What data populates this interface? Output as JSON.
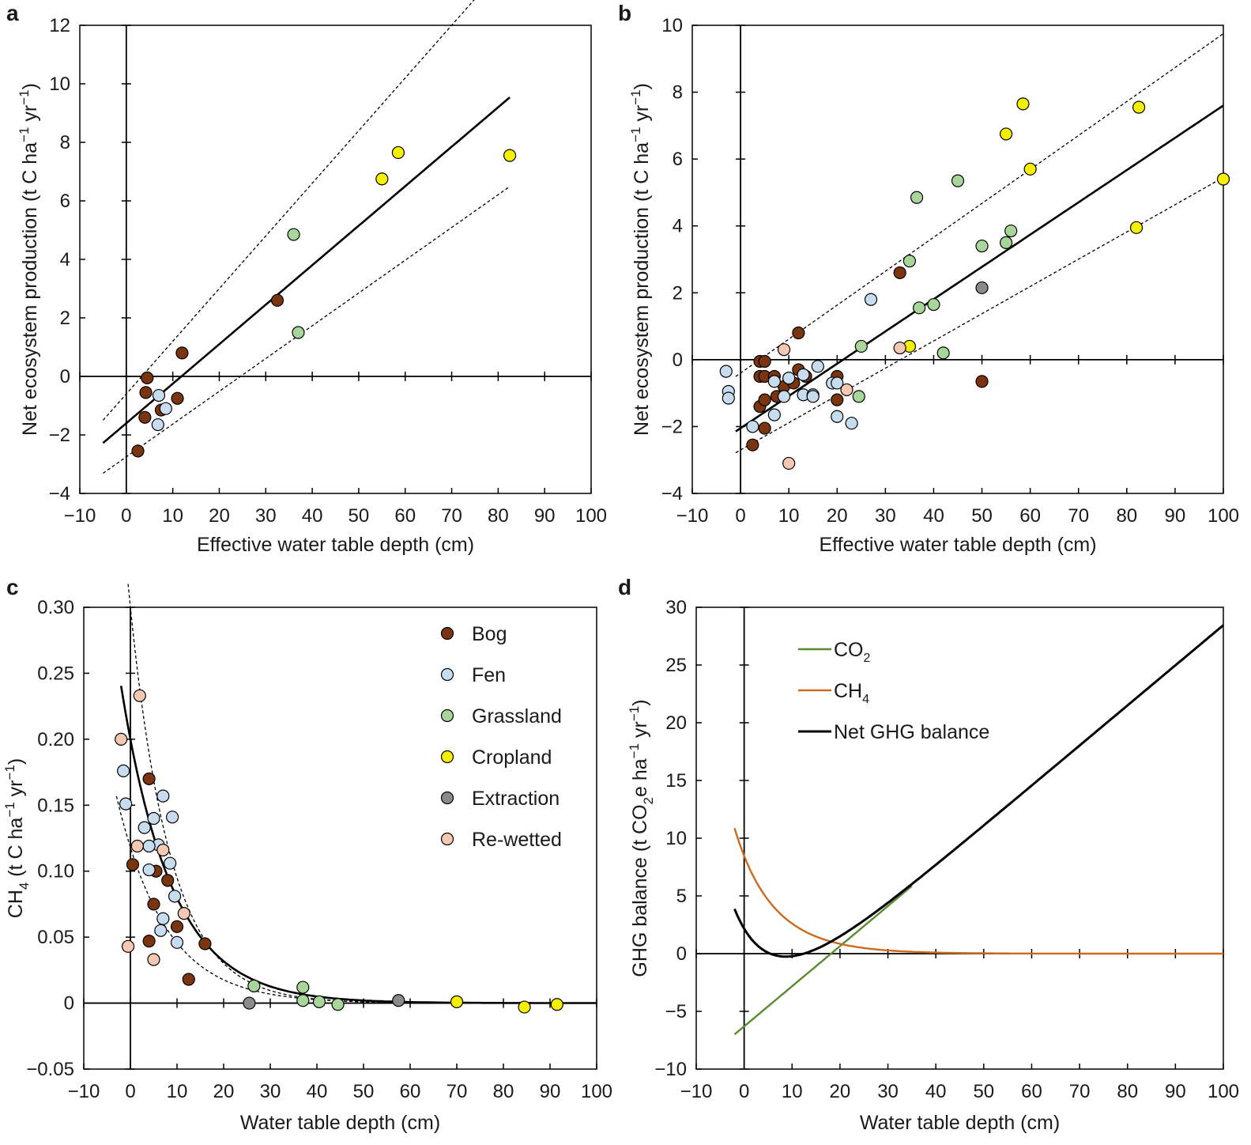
{
  "colors": {
    "bog": "#7a3410",
    "fen": "#c8dcf0",
    "grassland": "#a8d59a",
    "cropland": "#f5f000",
    "extraction": "#8a8a8a",
    "rewetted": "#f5c8b4",
    "co2": "#5a8a32",
    "ch4": "#cc6a1e",
    "net": "#000000"
  },
  "chart_data": [
    {
      "id": "a",
      "type": "scatter",
      "panel_label": "a",
      "xlabel": "Effective water table depth (cm)",
      "ylabel": "Net ecosystem production (t C ha",
      "ylabel_sup1": "−1",
      "ylabel_mid": " yr",
      "ylabel_sup2": "−1",
      "ylabel_end": ")",
      "xlim": [
        -10,
        100
      ],
      "ylim": [
        -4,
        12
      ],
      "xticks": [
        "−10",
        "0",
        "10",
        "20",
        "30",
        "40",
        "50",
        "60",
        "70",
        "80",
        "90",
        "100"
      ],
      "yticks": [
        "−4",
        "−2",
        "0",
        "2",
        "4",
        "6",
        "8",
        "10",
        "12"
      ],
      "series": [
        {
          "name": "Bog",
          "class": "bog",
          "points": [
            [
              4.5,
              -0.05
            ],
            [
              4.2,
              -0.55
            ],
            [
              4,
              -1.4
            ],
            [
              2.5,
              -2.55
            ],
            [
              7.5,
              -1.15
            ],
            [
              11,
              -0.75
            ],
            [
              12,
              0.8
            ],
            [
              32.5,
              2.6
            ]
          ]
        },
        {
          "name": "Fen",
          "class": "fen",
          "points": [
            [
              7,
              -0.65
            ],
            [
              8.5,
              -1.1
            ],
            [
              6.8,
              -1.65
            ]
          ]
        },
        {
          "name": "Grassland",
          "class": "grassland",
          "points": [
            [
              36,
              4.85
            ],
            [
              37,
              1.5
            ]
          ]
        },
        {
          "name": "Cropland",
          "class": "cropland",
          "points": [
            [
              55,
              6.75
            ],
            [
              58.5,
              7.65
            ],
            [
              82.5,
              7.55
            ]
          ]
        }
      ],
      "fit": {
        "x0": -5,
        "x1": 82.5,
        "slope": 0.135,
        "intercept": -1.6
      },
      "ci_upper": {
        "x0": -5,
        "x1": 80,
        "slope": 0.18,
        "intercept": -0.6
      },
      "ci_lower": {
        "x0": -5,
        "x1": 82.5,
        "slope": 0.112,
        "intercept": -2.75
      }
    },
    {
      "id": "b",
      "type": "scatter",
      "panel_label": "b",
      "xlabel": "Effective water table depth (cm)",
      "ylabel": "Net ecosystem production (t C ha",
      "ylabel_sup1": "−1",
      "ylabel_mid": " yr",
      "ylabel_sup2": "−1",
      "ylabel_end": ")",
      "xlim": [
        -10,
        100
      ],
      "ylim": [
        -4,
        10
      ],
      "xticks": [
        "−10",
        "0",
        "10",
        "20",
        "30",
        "40",
        "50",
        "60",
        "70",
        "80",
        "90",
        "100"
      ],
      "yticks": [
        "−4",
        "−2",
        "0",
        "2",
        "4",
        "6",
        "8",
        "10"
      ],
      "series": [
        {
          "name": "Bog",
          "class": "bog",
          "points": [
            [
              4,
              -0.05
            ],
            [
              5,
              -0.05
            ],
            [
              4,
              -0.5
            ],
            [
              5,
              -0.5
            ],
            [
              7,
              -0.5
            ],
            [
              7.5,
              -1.1
            ],
            [
              4,
              -1.4
            ],
            [
              5,
              -1.2
            ],
            [
              5,
              -2.05
            ],
            [
              2.5,
              -2.55
            ],
            [
              9,
              -0.8
            ],
            [
              11,
              -0.7
            ],
            [
              12,
              -0.3
            ],
            [
              13.5,
              -0.5
            ],
            [
              20,
              -0.5
            ],
            [
              20,
              -1.2
            ],
            [
              12,
              0.8
            ],
            [
              33,
              2.6
            ],
            [
              50,
              -0.65
            ]
          ]
        },
        {
          "name": "Fen",
          "class": "fen",
          "points": [
            [
              -3,
              -0.35
            ],
            [
              -2.5,
              -0.95
            ],
            [
              -2.5,
              -1.15
            ],
            [
              2.5,
              -2.0
            ],
            [
              7,
              -0.65
            ],
            [
              7,
              -1.65
            ],
            [
              9,
              -1.1
            ],
            [
              10,
              -0.55
            ],
            [
              13,
              -0.45
            ],
            [
              13,
              -1.05
            ],
            [
              15,
              -1.05
            ],
            [
              15,
              -1.1
            ],
            [
              16,
              -0.2
            ],
            [
              19,
              -0.7
            ],
            [
              20,
              -0.7
            ],
            [
              20,
              -1.7
            ],
            [
              23,
              -1.9
            ],
            [
              27,
              1.8
            ]
          ]
        },
        {
          "name": "Grassland",
          "class": "grassland",
          "points": [
            [
              24.5,
              -1.1
            ],
            [
              25,
              0.4
            ],
            [
              35,
              2.95
            ],
            [
              36.5,
              4.85
            ],
            [
              37,
              1.55
            ],
            [
              40,
              1.65
            ],
            [
              42,
              0.2
            ],
            [
              45,
              5.35
            ],
            [
              50,
              3.4
            ],
            [
              55,
              3.5
            ],
            [
              56,
              3.85
            ]
          ]
        },
        {
          "name": "Cropland",
          "class": "cropland",
          "points": [
            [
              35,
              0.4
            ],
            [
              55,
              6.75
            ],
            [
              58.5,
              7.65
            ],
            [
              60,
              5.7
            ],
            [
              82,
              3.95
            ],
            [
              82.5,
              7.55
            ],
            [
              100,
              5.4
            ]
          ]
        },
        {
          "name": "Extraction",
          "class": "extraction",
          "points": [
            [
              50,
              2.15
            ]
          ]
        },
        {
          "name": "Re-wetted",
          "class": "rewetted",
          "points": [
            [
              9,
              0.3
            ],
            [
              10,
              -3.1
            ],
            [
              22,
              -0.9
            ],
            [
              33,
              0.35
            ]
          ]
        }
      ],
      "fit": {
        "x0": -1,
        "x1": 100,
        "slope": 0.0965,
        "intercept": -2.05
      },
      "ci_upper": {
        "x0": -1,
        "x1": 100,
        "slope": 0.1015,
        "intercept": -0.4
      },
      "ci_lower": {
        "x0": -1,
        "x1": 100,
        "slope": 0.0815,
        "intercept": -2.7
      }
    },
    {
      "id": "c",
      "type": "scatter",
      "panel_label": "c",
      "xlabel": "Water table depth (cm)",
      "ylabel": "CH",
      "ylabel_sub": "4",
      "ylabel_rest": " (t C ha",
      "ylabel_sup1": "−1",
      "ylabel_mid": " yr",
      "ylabel_sup2": "−1",
      "ylabel_end": ")",
      "xlim": [
        -10,
        100
      ],
      "ylim": [
        -0.05,
        0.3
      ],
      "xticks": [
        "−10",
        "0",
        "10",
        "20",
        "30",
        "40",
        "50",
        "60",
        "70",
        "80",
        "90",
        "100"
      ],
      "yticks": [
        "−0.05",
        "0",
        "0.05",
        "0.10",
        "0.15",
        "0.20",
        "0.25",
        "0.30"
      ],
      "legend": [
        "Bog",
        "Fen",
        "Grassland",
        "Cropland",
        "Extraction",
        "Re-wetted"
      ],
      "series": [
        {
          "name": "Bog",
          "class": "bog",
          "points": [
            [
              4,
              0.17
            ],
            [
              0.5,
              0.105
            ],
            [
              5.5,
              0.1
            ],
            [
              8,
              0.093
            ],
            [
              5,
              0.075
            ],
            [
              10,
              0.058
            ],
            [
              4,
              0.047
            ],
            [
              16,
              0.045
            ],
            [
              12.5,
              0.018
            ]
          ]
        },
        {
          "name": "Fen",
          "class": "fen",
          "points": [
            [
              -1.5,
              0.176
            ],
            [
              -1,
              0.151
            ],
            [
              7,
              0.157
            ],
            [
              9,
              0.141
            ],
            [
              5,
              0.14
            ],
            [
              3,
              0.133
            ],
            [
              6,
              0.12
            ],
            [
              4,
              0.119
            ],
            [
              8.5,
              0.106
            ],
            [
              4,
              0.101
            ],
            [
              9.5,
              0.081
            ],
            [
              7,
              0.064
            ],
            [
              6.5,
              0.055
            ],
            [
              10,
              0.046
            ]
          ]
        },
        {
          "name": "Grassland",
          "class": "grassland",
          "points": [
            [
              26.5,
              0.013
            ],
            [
              37,
              0.012
            ],
            [
              37,
              0.002
            ],
            [
              40.5,
              0.001
            ],
            [
              44.5,
              -0.001
            ]
          ]
        },
        {
          "name": "Cropland",
          "class": "cropland",
          "points": [
            [
              70,
              0.001
            ],
            [
              84.5,
              -0.003
            ],
            [
              91.5,
              -0.001
            ]
          ]
        },
        {
          "name": "Extraction",
          "class": "extraction",
          "points": [
            [
              25.5,
              0
            ],
            [
              57.5,
              0.002
            ]
          ]
        },
        {
          "name": "Re-wetted",
          "class": "rewetted",
          "points": [
            [
              -2,
              0.2
            ],
            [
              2,
              0.233
            ],
            [
              1.5,
              0.119
            ],
            [
              7,
              0.116
            ],
            [
              11.5,
              0.068
            ],
            [
              -0.5,
              0.043
            ],
            [
              5,
              0.033
            ]
          ]
        }
      ],
      "fit": {
        "a": 0.2,
        "k": 0.092,
        "x0": -2,
        "x1": 100
      },
      "ci_upper": {
        "a": 0.3,
        "k": 0.115,
        "x0": -0.5,
        "x1": 100
      },
      "ci_lower": {
        "a": 0.118,
        "k": 0.095,
        "x0": -3,
        "x1": 100
      }
    },
    {
      "id": "d",
      "type": "line",
      "panel_label": "d",
      "xlabel": "Water table depth (cm)",
      "ylabel": "GHG balance (t CO",
      "ylabel_sub": "2",
      "ylabel_rest": "e ha",
      "ylabel_sup1": "−1",
      "ylabel_mid": " yr",
      "ylabel_sup2": "−1",
      "ylabel_end": ")",
      "xlim": [
        -10,
        100
      ],
      "ylim": [
        -10,
        30
      ],
      "xticks": [
        "−10",
        "0",
        "10",
        "20",
        "30",
        "40",
        "50",
        "60",
        "70",
        "80",
        "90",
        "100"
      ],
      "yticks": [
        "−10",
        "−5",
        "0",
        "5",
        "10",
        "15",
        "20",
        "25",
        "30"
      ],
      "legend": [
        {
          "label": "CO",
          "sub": "2",
          "class": "co2"
        },
        {
          "label": "CH",
          "sub": "4",
          "class": "ch4"
        },
        {
          "label": "Net GHG balance",
          "sub": "",
          "class": "net"
        }
      ],
      "co2": {
        "x0": -2,
        "x1": 35,
        "slope": 0.3475,
        "intercept": -6.3
      },
      "ch4": {
        "a": 7.6,
        "k": 0.11,
        "x0": -2,
        "x1": 100
      },
      "net": {
        "x0": -2,
        "x1": 100
      }
    }
  ]
}
